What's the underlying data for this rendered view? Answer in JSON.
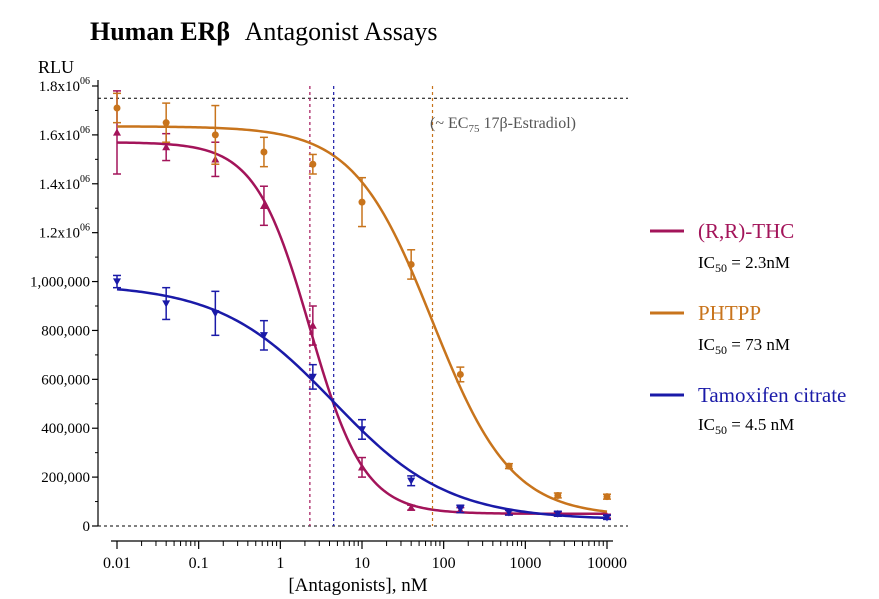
{
  "chart_data": {
    "type": "scatter",
    "title": {
      "bold": "Human ERβ",
      "normal": "Antagonist Assays"
    },
    "ylabel": "RLU",
    "xlabel": "[Antagonists], nM",
    "x_scale": "log",
    "xlim": [
      0.01,
      10000
    ],
    "ylim": [
      0,
      1800000
    ],
    "x_ticks": [
      {
        "value": 0.01,
        "label": "0.01"
      },
      {
        "value": 0.1,
        "label": "0.1"
      },
      {
        "value": 1,
        "label": "1"
      },
      {
        "value": 10,
        "label": "10"
      },
      {
        "value": 100,
        "label": "100"
      },
      {
        "value": 1000,
        "label": "1000"
      },
      {
        "value": 10000,
        "label": "10000"
      }
    ],
    "y_ticks": [
      {
        "value": 0,
        "label": "0"
      },
      {
        "value": 200000,
        "label": "200,000"
      },
      {
        "value": 400000,
        "label": "400,000"
      },
      {
        "value": 600000,
        "label": "600,000"
      },
      {
        "value": 800000,
        "label": "800,000"
      },
      {
        "value": 1000000,
        "label": "1,000,000"
      },
      {
        "value": 1200000,
        "label": "1.2x10",
        "sup": "06"
      },
      {
        "value": 1400000,
        "label": "1.4x10",
        "sup": "06"
      },
      {
        "value": 1600000,
        "label": "1.6x10",
        "sup": "06"
      },
      {
        "value": 1800000,
        "label": "1.8x10",
        "sup": "06"
      }
    ],
    "reference_line": {
      "y": 1750000,
      "label": "(~ EC",
      "label_sub": "75",
      "label_rest": " 17β-Estradiol)"
    },
    "series": [
      {
        "name": "(R,R)-THC",
        "color": "#a3145a",
        "marker": "triangle-up",
        "ic50_label": "IC",
        "ic50_sub": "50",
        "ic50_value": " = 2.3nM",
        "ic50": 2.3,
        "fit": {
          "top": 1570000,
          "bottom": 50000,
          "hill": 1.3
        },
        "points": [
          {
            "x": 0.01,
            "y": 1610000,
            "err": 170000
          },
          {
            "x": 0.04,
            "y": 1550000,
            "err": 55000
          },
          {
            "x": 0.16,
            "y": 1500000,
            "err": 70000
          },
          {
            "x": 0.63,
            "y": 1310000,
            "err": 80000
          },
          {
            "x": 2.5,
            "y": 820000,
            "err": 80000
          },
          {
            "x": 10,
            "y": 240000,
            "err": 40000
          },
          {
            "x": 40,
            "y": 75000,
            "err": 10000
          },
          {
            "x": 160,
            "y": 65000,
            "err": 10000
          },
          {
            "x": 630,
            "y": 55000,
            "err": 8000
          },
          {
            "x": 2500,
            "y": 50000,
            "err": 8000
          },
          {
            "x": 10000,
            "y": 40000,
            "err": 8000
          }
        ]
      },
      {
        "name": "PHTPP",
        "color": "#c8741c",
        "marker": "circle",
        "ic50_label": "IC",
        "ic50_sub": "50",
        "ic50_value": " = 73 nM",
        "ic50": 73,
        "fit": {
          "top": 1635000,
          "bottom": 40000,
          "hill": 0.9
        },
        "points": [
          {
            "x": 0.01,
            "y": 1710000,
            "err": 60000
          },
          {
            "x": 0.04,
            "y": 1650000,
            "err": 80000
          },
          {
            "x": 0.16,
            "y": 1600000,
            "err": 120000
          },
          {
            "x": 0.63,
            "y": 1530000,
            "err": 60000
          },
          {
            "x": 2.5,
            "y": 1480000,
            "err": 40000
          },
          {
            "x": 10,
            "y": 1325000,
            "err": 100000
          },
          {
            "x": 40,
            "y": 1070000,
            "err": 60000
          },
          {
            "x": 160,
            "y": 620000,
            "err": 30000
          },
          {
            "x": 630,
            "y": 245000,
            "err": 10000
          },
          {
            "x": 2500,
            "y": 125000,
            "err": 10000
          },
          {
            "x": 10000,
            "y": 120000,
            "err": 10000
          }
        ]
      },
      {
        "name": "Tamoxifen citrate",
        "color": "#1a1aa8",
        "marker": "triangle-down",
        "ic50_label": "IC",
        "ic50_sub": "50",
        "ic50_value": " = 4.5 nM",
        "ic50": 4.5,
        "fit": {
          "top": 990000,
          "bottom": 25000,
          "hill": 0.62
        },
        "points": [
          {
            "x": 0.01,
            "y": 1000000,
            "err": 25000
          },
          {
            "x": 0.04,
            "y": 910000,
            "err": 65000
          },
          {
            "x": 0.16,
            "y": 870000,
            "err": 90000
          },
          {
            "x": 0.63,
            "y": 780000,
            "err": 60000
          },
          {
            "x": 2.5,
            "y": 610000,
            "err": 50000
          },
          {
            "x": 10,
            "y": 395000,
            "err": 40000
          },
          {
            "x": 40,
            "y": 185000,
            "err": 20000
          },
          {
            "x": 160,
            "y": 70000,
            "err": 15000
          },
          {
            "x": 630,
            "y": 55000,
            "err": 10000
          },
          {
            "x": 2500,
            "y": 50000,
            "err": 10000
          },
          {
            "x": 10000,
            "y": 35000,
            "err": 8000
          }
        ]
      }
    ]
  }
}
